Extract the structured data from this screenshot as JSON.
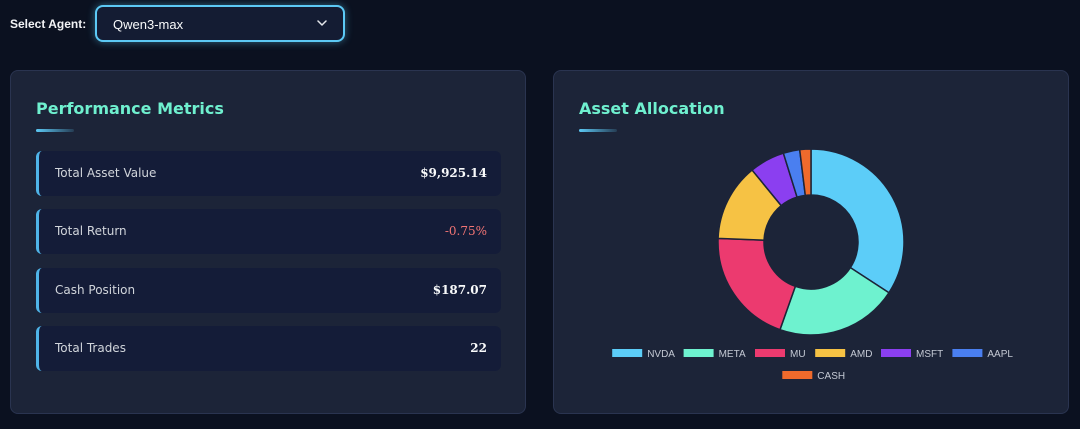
{
  "agent": {
    "label": "Select Agent:",
    "selected": "Qwen3-max"
  },
  "performance": {
    "title": "Performance Metrics",
    "metrics": [
      {
        "label": "Total Asset Value",
        "value": "$9,925.14"
      },
      {
        "label": "Total Return",
        "value": "-0.75%"
      },
      {
        "label": "Cash Position",
        "value": "$187.07"
      },
      {
        "label": "Total Trades",
        "value": "22"
      }
    ]
  },
  "allocation": {
    "title": "Asset Allocation"
  },
  "chart_data": {
    "type": "pie",
    "style": "doughnut",
    "title": "Asset Allocation",
    "legend_position": "bottom",
    "categories": [
      "NVDA",
      "META",
      "MU",
      "AMD",
      "MSFT",
      "AAPL",
      "CASH"
    ],
    "values": [
      33.5,
      20.8,
      19.8,
      13.2,
      6.0,
      2.8,
      1.9
    ],
    "colors": [
      "#5ccdf8",
      "#6ef2cf",
      "#ec3a6f",
      "#f6c244",
      "#8b3ff0",
      "#4a7ff0",
      "#ef6a2c"
    ]
  }
}
